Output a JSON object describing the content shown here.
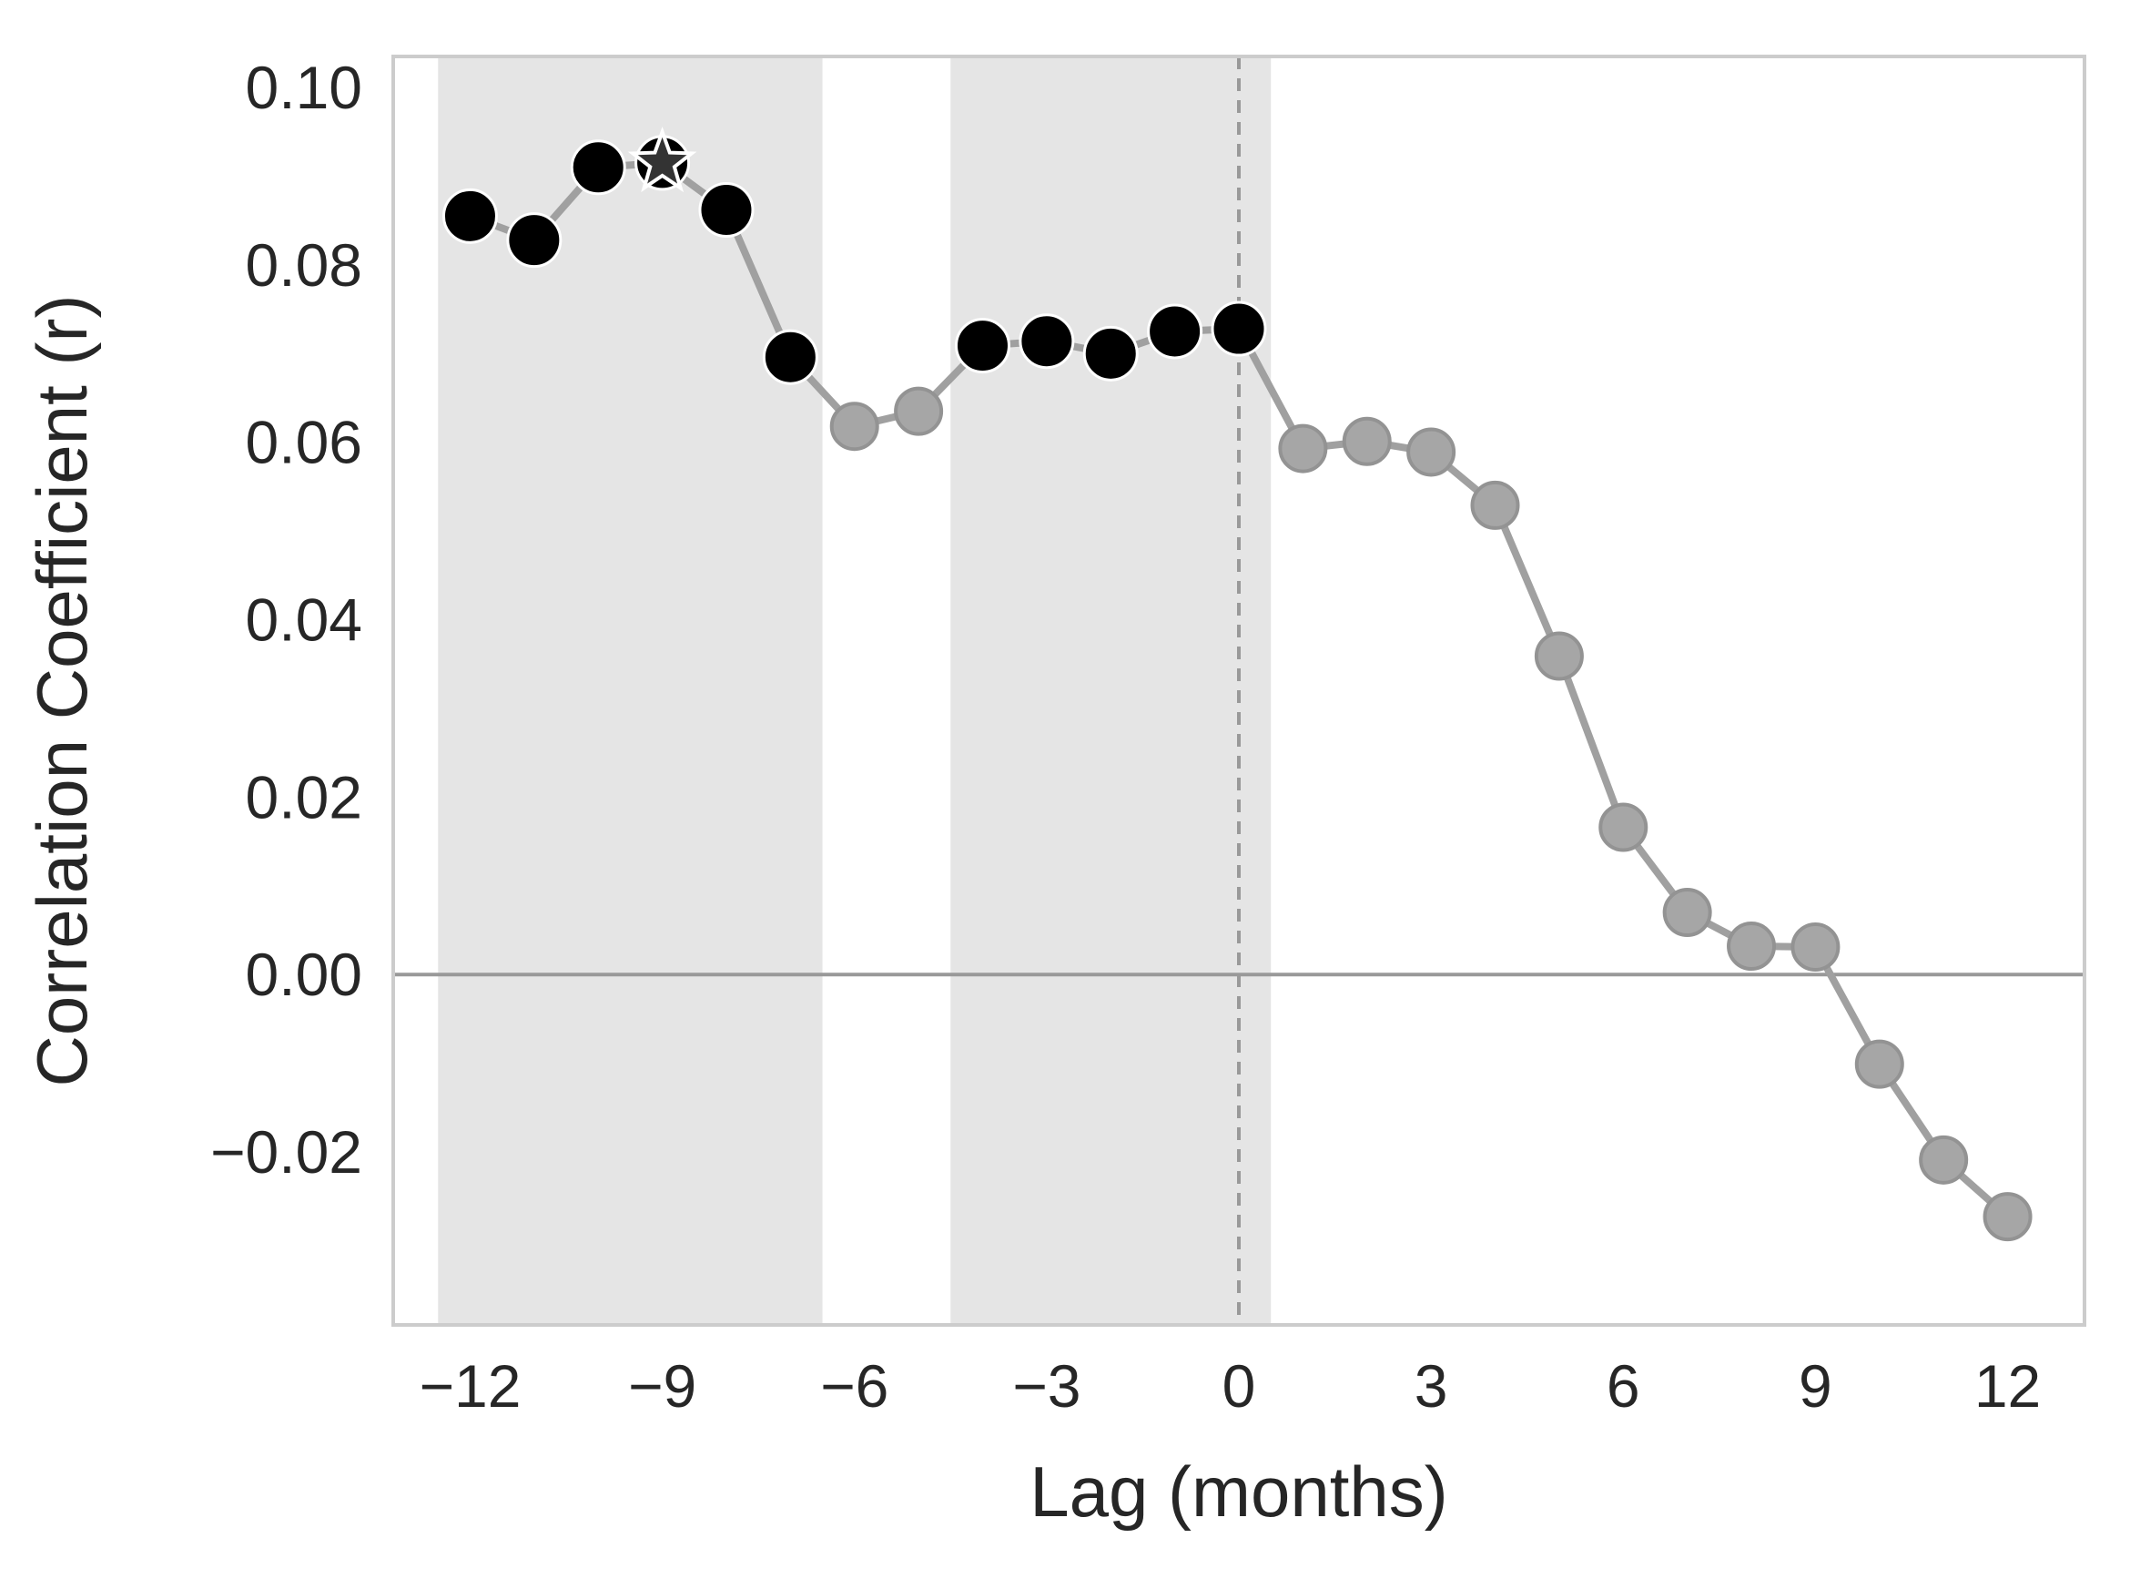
{
  "chart_data": {
    "type": "line",
    "title": "",
    "xlabel": "Lag (months)",
    "ylabel": "Correlation Coefficient (r)",
    "xlim": [
      -13.2,
      13.2
    ],
    "ylim": [
      -0.0395,
      0.1035
    ],
    "xticks": [
      -12,
      -9,
      -6,
      -3,
      0,
      3,
      6,
      9,
      12
    ],
    "xtick_labels": [
      "−12",
      "−9",
      "−6",
      "−3",
      "0",
      "3",
      "6",
      "9",
      "12"
    ],
    "yticks": [
      -0.02,
      0.0,
      0.02,
      0.04,
      0.06,
      0.08,
      0.1
    ],
    "ytick_labels": [
      "−0.02",
      "0.00",
      "0.02",
      "0.04",
      "0.06",
      "0.08",
      "0.10"
    ],
    "grid": false,
    "shaded_x_ranges": [
      [
        -12.5,
        -6.5
      ],
      [
        -4.5,
        0.5
      ]
    ],
    "reference_lines": {
      "horizontal_y": 0.0,
      "vertical_x": 0
    },
    "series": [
      {
        "x": [
          -12,
          -11,
          -10,
          -9,
          -8,
          -7,
          -6,
          -5,
          -4,
          -3,
          -2,
          -1,
          0,
          1,
          2,
          3,
          4,
          5,
          6,
          7,
          8,
          9,
          10,
          11,
          12
        ],
        "y": [
          0.0855,
          0.0828,
          0.091,
          0.0915,
          0.0862,
          0.0696,
          0.0618,
          0.0635,
          0.0709,
          0.0714,
          0.07,
          0.0725,
          0.0728,
          0.0593,
          0.0601,
          0.0589,
          0.0529,
          0.0359,
          0.0166,
          0.007,
          0.0032,
          0.0031,
          -0.0101,
          -0.0209,
          -0.0273
        ],
        "significant": [
          true,
          true,
          true,
          true,
          true,
          true,
          false,
          false,
          true,
          true,
          true,
          true,
          true,
          false,
          false,
          false,
          false,
          false,
          false,
          false,
          false,
          false,
          false,
          false,
          false
        ]
      }
    ],
    "peak_marker": {
      "x": -9,
      "y": 0.0915,
      "symbol": "star"
    },
    "colors": {
      "line": "#a0a0a0",
      "significant_point": "#000000",
      "nonsignificant_point": "#a6a6a6",
      "shade": "#e5e5e5",
      "reference_line": "#999999",
      "axis_frame": "#cccccc",
      "star_fill": "#333333",
      "star_stroke": "#ffffff"
    }
  }
}
